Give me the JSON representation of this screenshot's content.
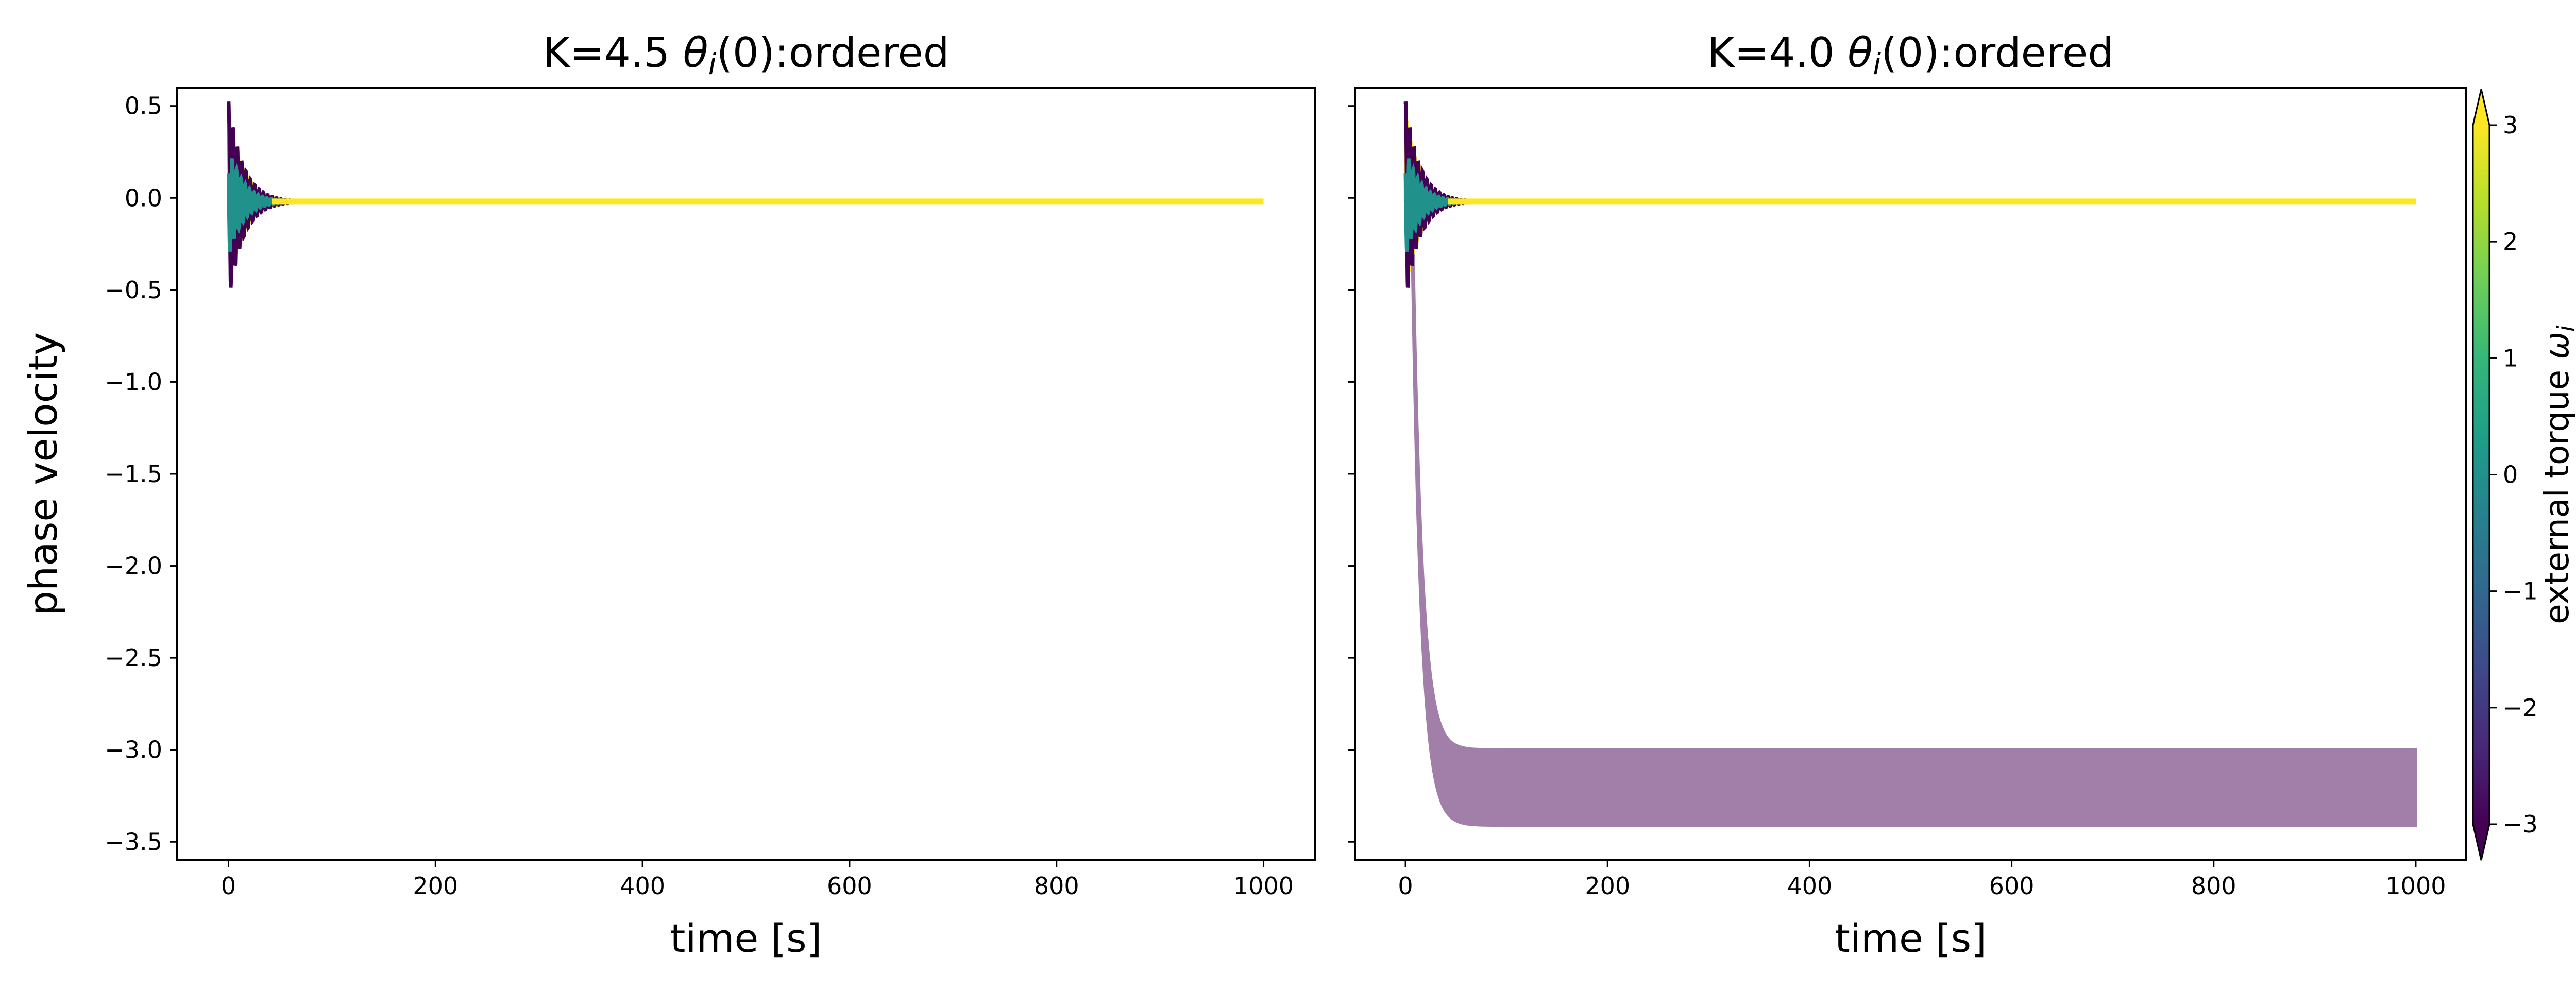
{
  "chart_data": [
    {
      "type": "line",
      "title_prefix": "K=4.5 ",
      "title_theta": "θ",
      "title_sub": "i",
      "title_suffix": "(0):ordered",
      "xlabel": "time [s]",
      "ylabel": "phase velocity",
      "xlim": [
        -50,
        1050
      ],
      "ylim": [
        -3.6,
        0.6
      ],
      "xticks": [
        0,
        200,
        400,
        600,
        800,
        1000
      ],
      "yticks": [
        0.5,
        0.0,
        -0.5,
        -1.0,
        -1.5,
        -2.0,
        -2.5,
        -3.0,
        -3.5
      ],
      "ytick_labels": [
        "0.5",
        "0.0",
        "−0.5",
        "−1.0",
        "−1.5",
        "−2.0",
        "−2.5",
        "−3.0",
        "−3.5"
      ],
      "grid": false,
      "steady_value": -0.02,
      "transient": {
        "t_end": 70,
        "max_amplitude": 0.48,
        "min_amplitude": -0.55
      },
      "series": [
        {
          "torque": 3,
          "color": "#fde725"
        },
        {
          "torque": -2.5,
          "color": "#440154"
        },
        {
          "torque": 0,
          "color": "#21918c"
        }
      ]
    },
    {
      "type": "line",
      "title_prefix": "K=4.0 ",
      "title_theta": "θ",
      "title_sub": "i",
      "title_suffix": "(0):ordered",
      "xlabel": "time [s]",
      "ylabel": "",
      "xlim": [
        -50,
        1050
      ],
      "ylim": [
        -3.6,
        0.6
      ],
      "xticks": [
        0,
        200,
        400,
        600,
        800,
        1000
      ],
      "yticks": [
        0.5,
        0.0,
        -0.5,
        -1.0,
        -1.5,
        -2.0,
        -2.5,
        -3.0,
        -3.5
      ],
      "grid": false,
      "steady_value": -0.02,
      "transient": {
        "t_end": 70,
        "max_amplitude": 0.48,
        "min_amplitude": -0.55
      },
      "drifting_band": {
        "color": "#a17fa8",
        "steady_upper": -3.0,
        "steady_lower": -3.41,
        "settle_time": 55
      },
      "series": [
        {
          "torque": 3,
          "color": "#fde725"
        },
        {
          "torque": -2.5,
          "color": "#440154"
        },
        {
          "torque": 0,
          "color": "#21918c"
        }
      ]
    }
  ],
  "colorbar": {
    "label_main": "external torque ",
    "label_omega": "ω",
    "label_sub": "i",
    "range": [
      -3,
      3
    ],
    "ticks": [
      3,
      2,
      1,
      0,
      -1,
      -2,
      -3
    ],
    "tick_labels": [
      "3",
      "2",
      "1",
      "0",
      "−1",
      "−2",
      "−3"
    ],
    "colormap": [
      "#440154",
      "#482878",
      "#3e4989",
      "#31688e",
      "#26828e",
      "#1f9e89",
      "#35b779",
      "#6ece58",
      "#b5de2b",
      "#fde725"
    ],
    "extend": "both"
  }
}
